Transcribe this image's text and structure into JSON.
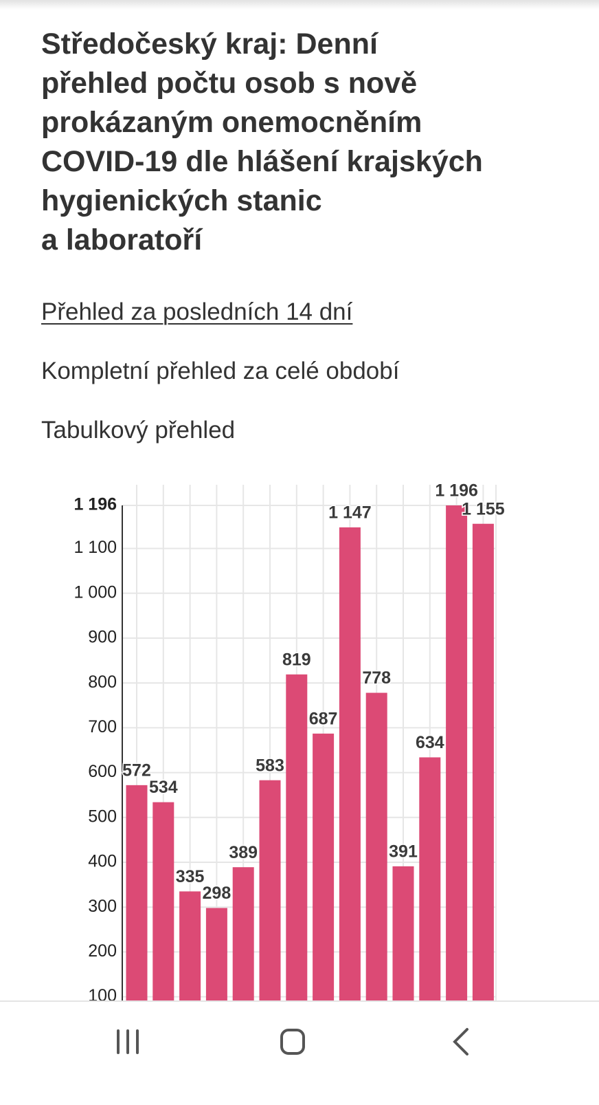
{
  "header": {
    "title": "Středočeský kraj: Denní\npřehled počtu osob s nově\nprokázaným onemocněním\nCOVID-19 dle hlášení krajských\nhygienických stanic\na laboratoří"
  },
  "links": [
    "Přehled za posledních 14 dní",
    "Kompletní přehled za celé období",
    "Tabulkový přehled"
  ],
  "chart_data": {
    "type": "bar",
    "categories": [
      null,
      null,
      null,
      null,
      null,
      null,
      null,
      null,
      null,
      null,
      null,
      null,
      null,
      null
    ],
    "values": [
      572,
      534,
      335,
      298,
      389,
      583,
      819,
      687,
      1147,
      778,
      391,
      634,
      1196,
      1155
    ],
    "value_labels": [
      "572",
      "534",
      "335",
      "298",
      "389",
      "583",
      "819",
      "687",
      "1 147",
      "778",
      "391",
      "634",
      "1 196",
      "1 155"
    ],
    "color": "#dc4a75",
    "ylim": [
      0,
      1196
    ],
    "yticks": [
      100,
      200,
      300,
      400,
      500,
      600,
      700,
      800,
      900,
      {
        "value": 1000,
        "label": "1 000"
      },
      {
        "value": 1100,
        "label": "1 100"
      },
      {
        "value": 1196,
        "label": "1 196"
      }
    ],
    "grid": true
  }
}
